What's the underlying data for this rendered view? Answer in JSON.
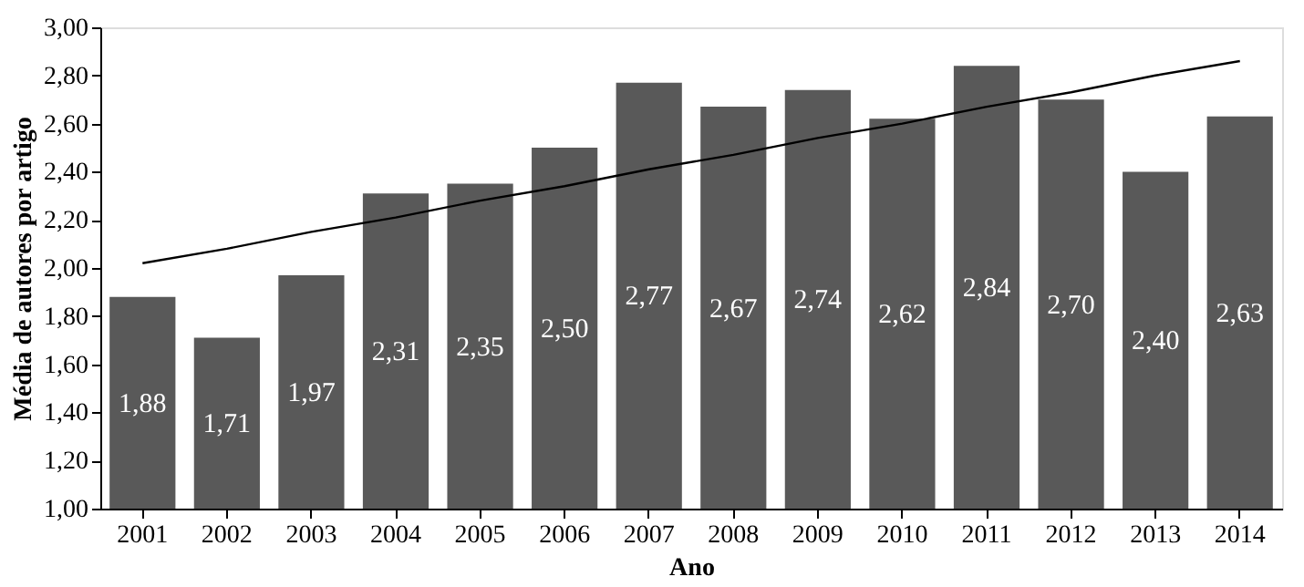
{
  "chart_data": {
    "type": "bar",
    "xlabel": "Ano",
    "ylabel": "Média de autores por artigo",
    "categories": [
      "2001",
      "2002",
      "2003",
      "2004",
      "2005",
      "2006",
      "2007",
      "2008",
      "2009",
      "2010",
      "2011",
      "2012",
      "2013",
      "2014"
    ],
    "series": [
      {
        "color": "#595959",
        "values": [
          1.88,
          1.71,
          1.97,
          2.31,
          2.35,
          2.5,
          2.77,
          2.67,
          2.74,
          2.62,
          2.84,
          2.7,
          2.4,
          2.63
        ],
        "value_labels": [
          "1,88",
          "1,71",
          "1,97",
          "2,31",
          "2,35",
          "2,50",
          "2,77",
          "2,67",
          "2,74",
          "2,62",
          "2,84",
          "2,70",
          "2,40",
          "2,63"
        ]
      },
      {
        "type": "line",
        "color": "#000000",
        "values": [
          2.02,
          2.08,
          2.15,
          2.21,
          2.28,
          2.34,
          2.41,
          2.47,
          2.54,
          2.6,
          2.67,
          2.73,
          2.8,
          2.86
        ]
      }
    ],
    "ylim": [
      1.0,
      3.0
    ],
    "yticks": [
      {
        "value": 1.0,
        "label": "1,00"
      },
      {
        "value": 1.2,
        "label": "1,20"
      },
      {
        "value": 1.4,
        "label": "1,40"
      },
      {
        "value": 1.6,
        "label": "1,60"
      },
      {
        "value": 1.8,
        "label": "1,80"
      },
      {
        "value": 2.0,
        "label": "2,00"
      },
      {
        "value": 2.2,
        "label": "2,20"
      },
      {
        "value": 2.4,
        "label": "2,40"
      },
      {
        "value": 2.6,
        "label": "2,60"
      },
      {
        "value": 2.8,
        "label": "2,80"
      },
      {
        "value": 3.0,
        "label": "3,00"
      }
    ],
    "grid": false
  }
}
